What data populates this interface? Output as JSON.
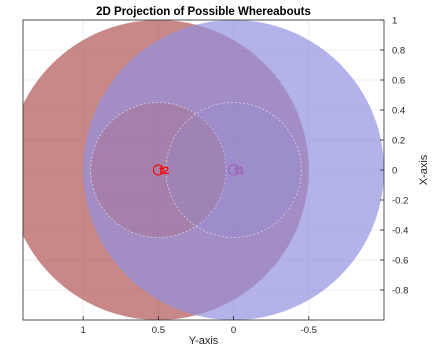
{
  "chart_data": {
    "type": "scatter",
    "title": "2D Projection of Possible Whereabouts",
    "xlabel": "Y-axis",
    "ylabel": "X-axis",
    "x_reversed": true,
    "xlim": [
      1.4,
      -1.0
    ],
    "ylim": [
      -1.0,
      1.0
    ],
    "x_ticks": [
      1,
      0.5,
      0,
      -0.5
    ],
    "x_tick_labels": [
      "1",
      "0.5",
      "0",
      "-0.5"
    ],
    "y_ticks": [
      1,
      0.8,
      0.6,
      0.4,
      0.2,
      0,
      -0.2,
      -0.4,
      -0.6,
      -0.8
    ],
    "y_tick_labels": [
      "1",
      "0.8",
      "0.6",
      "0.4",
      "0.2",
      "0",
      "-0.2",
      "-0.4",
      "-0.6",
      "-0.8"
    ],
    "grid": true,
    "y_axis_location": "right",
    "regions": [
      {
        "name": "t2",
        "center": [
          0.5,
          0
        ],
        "outer_radius": 1.0,
        "inner_radius": 0.45,
        "color": "#b0504f"
      },
      {
        "name": "t1",
        "center": [
          0.0,
          0
        ],
        "outer_radius": 1.0,
        "inner_radius": 0.45,
        "color": "#8f8fe0"
      }
    ],
    "points": [
      {
        "label": "t2",
        "x": 0.5,
        "y": 0,
        "color": "#ff0000"
      },
      {
        "label": "t1",
        "x": 0.0,
        "y": 0,
        "color": "#9e5fb5"
      }
    ]
  }
}
